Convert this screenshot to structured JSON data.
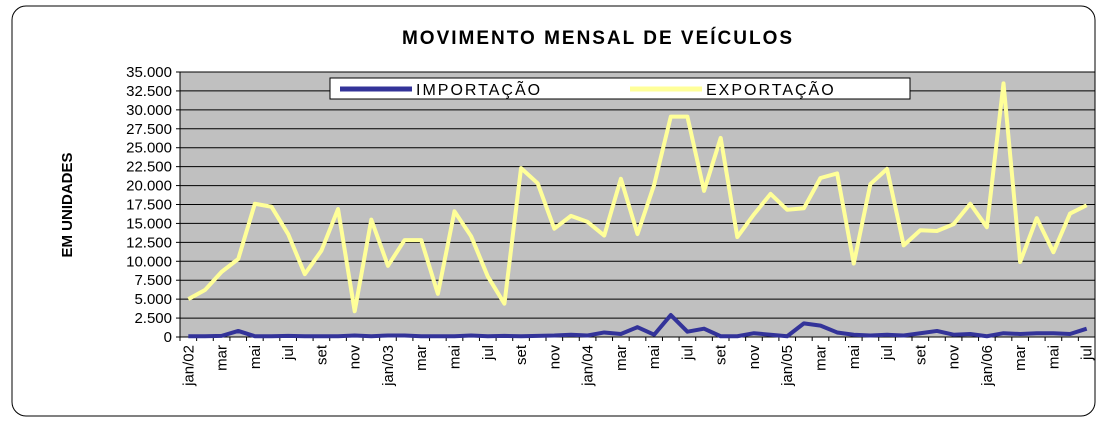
{
  "chart_data": {
    "type": "line",
    "title": "MOVIMENTO MENSAL DE VEÍCULOS",
    "y_label": "EM UNIDADES",
    "categories": [
      "jan/02",
      null,
      "mar",
      null,
      "mai",
      null,
      "jul",
      null,
      "set",
      null,
      "nov",
      null,
      "jan/03",
      null,
      "mar",
      null,
      "mai",
      null,
      "jul",
      null,
      "set",
      null,
      "nov",
      null,
      "jan/04",
      null,
      "mar",
      null,
      "mai",
      null,
      "jul",
      null,
      "set",
      null,
      "nov",
      null,
      "jan/05",
      null,
      "mar",
      null,
      "mai",
      null,
      "jul",
      null,
      "set",
      null,
      "nov",
      null,
      "jan/06",
      null,
      "mar",
      null,
      "mai",
      null,
      "jul"
    ],
    "series": [
      {
        "name": "IMPORTAÇÃO",
        "color": "#333399",
        "values": [
          100,
          100,
          150,
          800,
          100,
          100,
          150,
          100,
          100,
          100,
          200,
          100,
          200,
          200,
          100,
          100,
          100,
          200,
          100,
          150,
          100,
          150,
          200,
          300,
          200,
          600,
          400,
          1300,
          300,
          2900,
          700,
          1100,
          100,
          100,
          500,
          300,
          100,
          1800,
          1500,
          600,
          300,
          200,
          300,
          200,
          500,
          800,
          300,
          400,
          100,
          500,
          400,
          500,
          500,
          400,
          1100
        ]
      },
      {
        "name": "EXPORTAÇÃO",
        "color": "#ffff99",
        "values": [
          5000,
          6200,
          8600,
          10300,
          17600,
          17200,
          13600,
          8300,
          11400,
          16900,
          3400,
          15500,
          9400,
          12800,
          12800,
          5700,
          16600,
          13300,
          8000,
          4400,
          22300,
          20300,
          14300,
          16000,
          15200,
          13400,
          20900,
          13600,
          20100,
          29100,
          29100,
          19300,
          26300,
          13200,
          16200,
          18900,
          16800,
          17000,
          21000,
          21600,
          9700,
          20200,
          22200,
          12100,
          14100,
          14000,
          14900,
          17600,
          14500,
          33500,
          9900,
          15700,
          11200,
          16300,
          17400
        ]
      }
    ],
    "ylim": [
      0,
      35000
    ],
    "yticks": [
      0,
      {
        "value": 2500,
        "label": "2.500"
      },
      {
        "value": 5000,
        "label": "5.000"
      },
      {
        "value": 7500,
        "label": "7.500"
      },
      {
        "value": 10000,
        "label": "10.000"
      },
      {
        "value": 12500,
        "label": "12.500"
      },
      {
        "value": 15000,
        "label": "15.000"
      },
      {
        "value": 17500,
        "label": "17.500"
      },
      {
        "value": 20000,
        "label": "20.000"
      },
      {
        "value": 22500,
        "label": "22.500"
      },
      {
        "value": 25000,
        "label": "25.000"
      },
      {
        "value": 27500,
        "label": "27.500"
      },
      {
        "value": 30000,
        "label": "30.000"
      },
      {
        "value": 32500,
        "label": "32.500"
      },
      {
        "value": 35000,
        "label": "35.000"
      }
    ],
    "grid": true,
    "legend": "top"
  }
}
